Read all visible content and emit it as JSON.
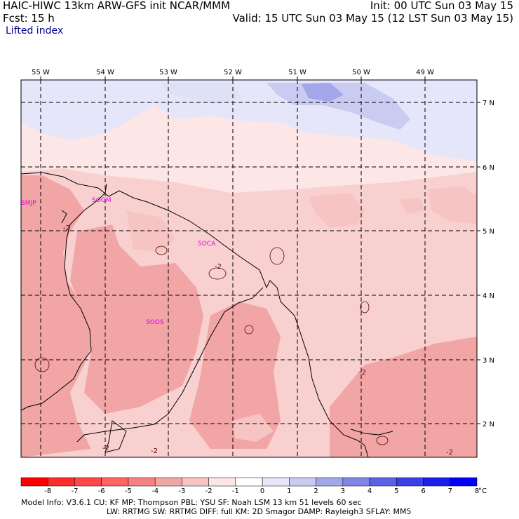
{
  "header": {
    "model_title": "HAIC-HIWC 13km ARW-GFS init   NCAR/MMM",
    "init_time": "Init: 00 UTC Sun 03 May 15",
    "forecast_label": "Fcst:   15 h",
    "valid_time": "Valid: 15 UTC Sun 03 May 15 (12 LST Sun 03 May 15)",
    "field_name": "Lifted index"
  },
  "map": {
    "longitude_labels": [
      "55 W",
      "54 W",
      "53 W",
      "52 W",
      "51 W",
      "50 W",
      "49 W"
    ],
    "latitude_labels": [
      "7 N",
      "6 N",
      "5 N",
      "4 N",
      "3 N",
      "2 N"
    ],
    "stations": [
      "SMJP",
      "SOGM",
      "SOCA",
      "SOOS"
    ],
    "contour_labels": [
      "-2",
      "-2",
      "-2",
      "-2",
      "-2",
      "-2"
    ],
    "field_colors": {
      "pale_pink": "#fde6e6",
      "light_pink": "#f7c4c4",
      "medium_pink": "#f2a5a5",
      "pale_blue": "#dfe2f5",
      "light_blue": "#c9ccf0",
      "medium_blue": "#a3a7ea"
    }
  },
  "colorbar": {
    "ticks": [
      "-8",
      "-7",
      "-6",
      "-5",
      "-4",
      "-3",
      "-2",
      "-1",
      "0",
      "1",
      "2",
      "3",
      "4",
      "5",
      "6",
      "7",
      "8"
    ],
    "unit": "°C",
    "colors": [
      "#ff0000",
      "#ff2b2b",
      "#ff4747",
      "#ff6363",
      "#f78080",
      "#f2a5a5",
      "#f7c4c4",
      "#fde6e6",
      "#ffffff",
      "#e6e6fb",
      "#c9ccf0",
      "#a3a7ea",
      "#8085e8",
      "#5c61e6",
      "#3a3fe6",
      "#1a1fe8",
      "#0000ff"
    ]
  },
  "footer": {
    "line1": "Model Info: V3.6.1    CU: KF      MP: Thompson     PBL: YSU      SF: Noah LSM     13 km   51 levels  60 sec",
    "line2": "LW: RRTMG   SW: RRTMG  DIFF: full   KM: 2D Smagor DAMP: Rayleigh3  SFLAY: MM5"
  }
}
